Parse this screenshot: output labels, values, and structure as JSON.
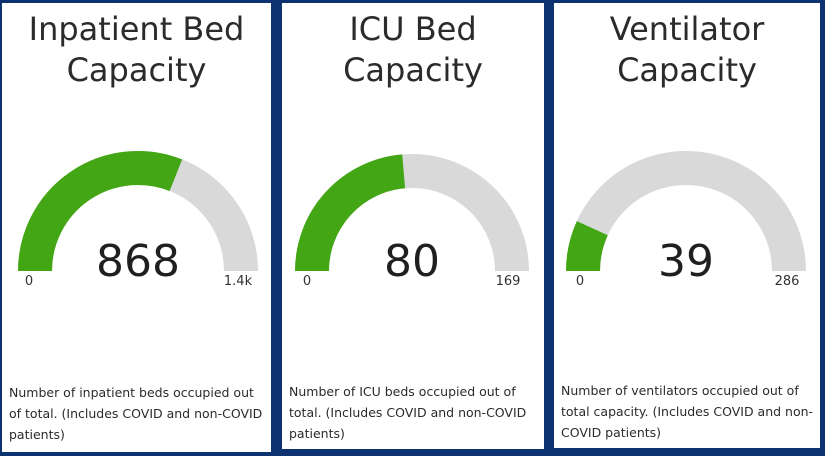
{
  "colors": {
    "background": "#0c3270",
    "card": "#ffffff",
    "fill": "#43a614",
    "track": "#d9d9d9"
  },
  "chart_data": [
    {
      "type": "gauge",
      "title": "Inpatient Bed Capacity",
      "value": 868,
      "value_label": "868",
      "min": 0,
      "max": 1400,
      "min_label": "0",
      "max_label": "1.4k",
      "description": "Number of inpatient beds occupied out of total. (Includes COVID and non-COVID patients)"
    },
    {
      "type": "gauge",
      "title": "ICU Bed Capacity",
      "value": 80,
      "value_label": "80",
      "min": 0,
      "max": 169,
      "min_label": "0",
      "max_label": "169",
      "description": "Number of ICU beds occupied out of total. (Includes COVID and non-COVID patients)"
    },
    {
      "type": "gauge",
      "title": "Ventilator Capacity",
      "value": 39,
      "value_label": "39",
      "min": 0,
      "max": 286,
      "min_label": "0",
      "max_label": "286",
      "description": "Number of ventilators occupied out of total capacity. (Includes COVID and non-COVID patients)"
    }
  ]
}
